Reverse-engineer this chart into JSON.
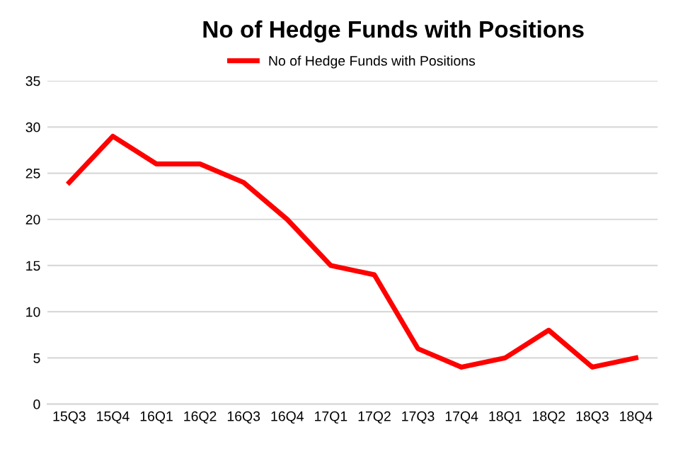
{
  "chart_data": {
    "type": "line",
    "title": "No of Hedge Funds with Positions",
    "categories": [
      "15Q3",
      "15Q4",
      "16Q1",
      "16Q2",
      "16Q3",
      "16Q4",
      "17Q1",
      "17Q2",
      "17Q3",
      "17Q4",
      "18Q1",
      "18Q2",
      "18Q3",
      "18Q4"
    ],
    "series": [
      {
        "name": "No of Hedge Funds with Positions",
        "color": "#ff0000",
        "values": [
          24,
          29,
          26,
          26,
          24,
          20,
          15,
          14,
          6,
          4,
          5,
          8,
          4,
          5
        ]
      }
    ],
    "ylim": [
      0,
      35
    ],
    "yticks": [
      0,
      5,
      10,
      15,
      20,
      25,
      30,
      35
    ],
    "grid": "y",
    "legend": "top",
    "marker": "none",
    "line_style": "solid"
  }
}
